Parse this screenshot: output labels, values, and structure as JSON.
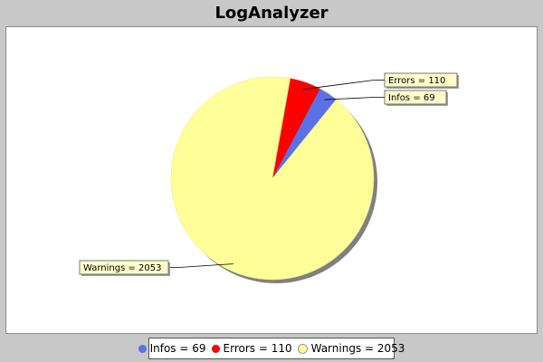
{
  "chart_data": {
    "type": "pie",
    "title": "LogAnalyzer",
    "slices": [
      {
        "name": "Infos",
        "value": 69,
        "label": "Infos = 69",
        "color": "#5b72e6"
      },
      {
        "name": "Errors",
        "value": 110,
        "label": "Errors = 110",
        "color": "#ff0000"
      },
      {
        "name": "Warnings",
        "value": 2053,
        "label": "Warnings = 2053",
        "color": "#ffff99"
      }
    ],
    "legend": {
      "placement": "bottom"
    }
  }
}
